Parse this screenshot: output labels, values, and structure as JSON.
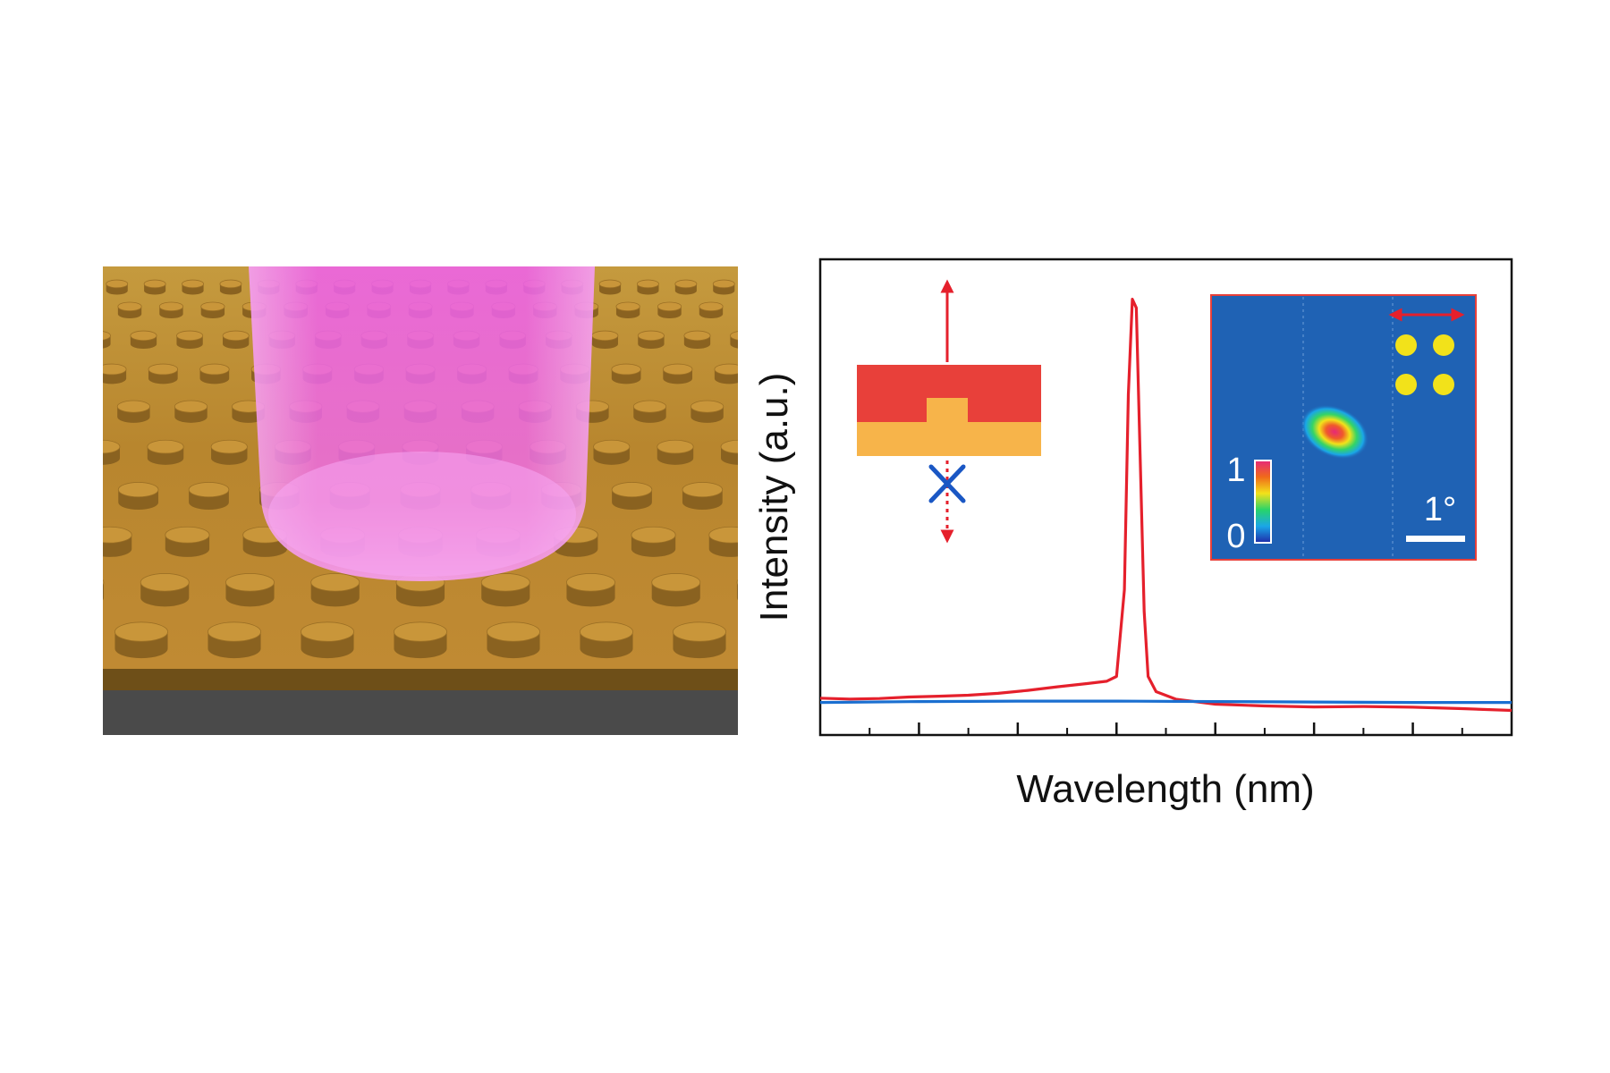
{
  "figure": {
    "colors": {
      "gold": "#c8922f",
      "gold_dark": "#6e4f18",
      "substrate": "#4a4a4a",
      "beam": "#f04cf0",
      "laser_red": "#e5202c",
      "baseline_blue": "#1a6fd0",
      "inset_bg": "#1f62b4",
      "inset_border": "#e8403a",
      "particle_yellow": "#f2e21a"
    },
    "scene": {
      "pillar_rows": 10,
      "pillar_cols": 12
    },
    "inset_schematic": {
      "top_color": "#e8403a",
      "bottom_color": "#f7b44a",
      "blocked_mark_color": "#1a57c4"
    },
    "inset_map": {
      "colorbar_max": "1",
      "colorbar_min": "0",
      "scale_label": "1°"
    }
  },
  "chart_data": {
    "type": "line",
    "title": "",
    "xlabel": "Wavelength (nm)",
    "ylabel": "Intensity (a.u.)",
    "xlim": [
      0,
      70
    ],
    "ylim": [
      0,
      1
    ],
    "x_ticks_major": [
      10,
      20,
      30,
      40,
      50,
      60
    ],
    "x_ticks_minor": [
      5,
      15,
      25,
      35,
      45,
      55,
      65
    ],
    "grid": false,
    "series": [
      {
        "color": "#e5202c",
        "x": [
          0,
          3,
          6,
          9,
          12,
          15,
          18,
          21,
          24,
          27,
          29,
          30,
          30.8,
          31.2,
          31.6,
          32,
          32.4,
          32.8,
          33.2,
          34,
          36,
          40,
          45,
          50,
          55,
          60,
          65,
          70
        ],
        "y": [
          0.05,
          0.045,
          0.045,
          0.05,
          0.055,
          0.06,
          0.065,
          0.07,
          0.075,
          0.08,
          0.085,
          0.1,
          0.3,
          0.75,
          0.97,
          0.95,
          0.6,
          0.25,
          0.1,
          0.065,
          0.05,
          0.04,
          0.035,
          0.03,
          0.028,
          0.025,
          0.023,
          0.022
        ]
      },
      {
        "color": "#1a6fd0",
        "x": [
          0,
          10,
          20,
          30,
          40,
          50,
          60,
          70
        ],
        "y": [
          0.04,
          0.042,
          0.043,
          0.043,
          0.042,
          0.041,
          0.04,
          0.04
        ]
      }
    ]
  }
}
